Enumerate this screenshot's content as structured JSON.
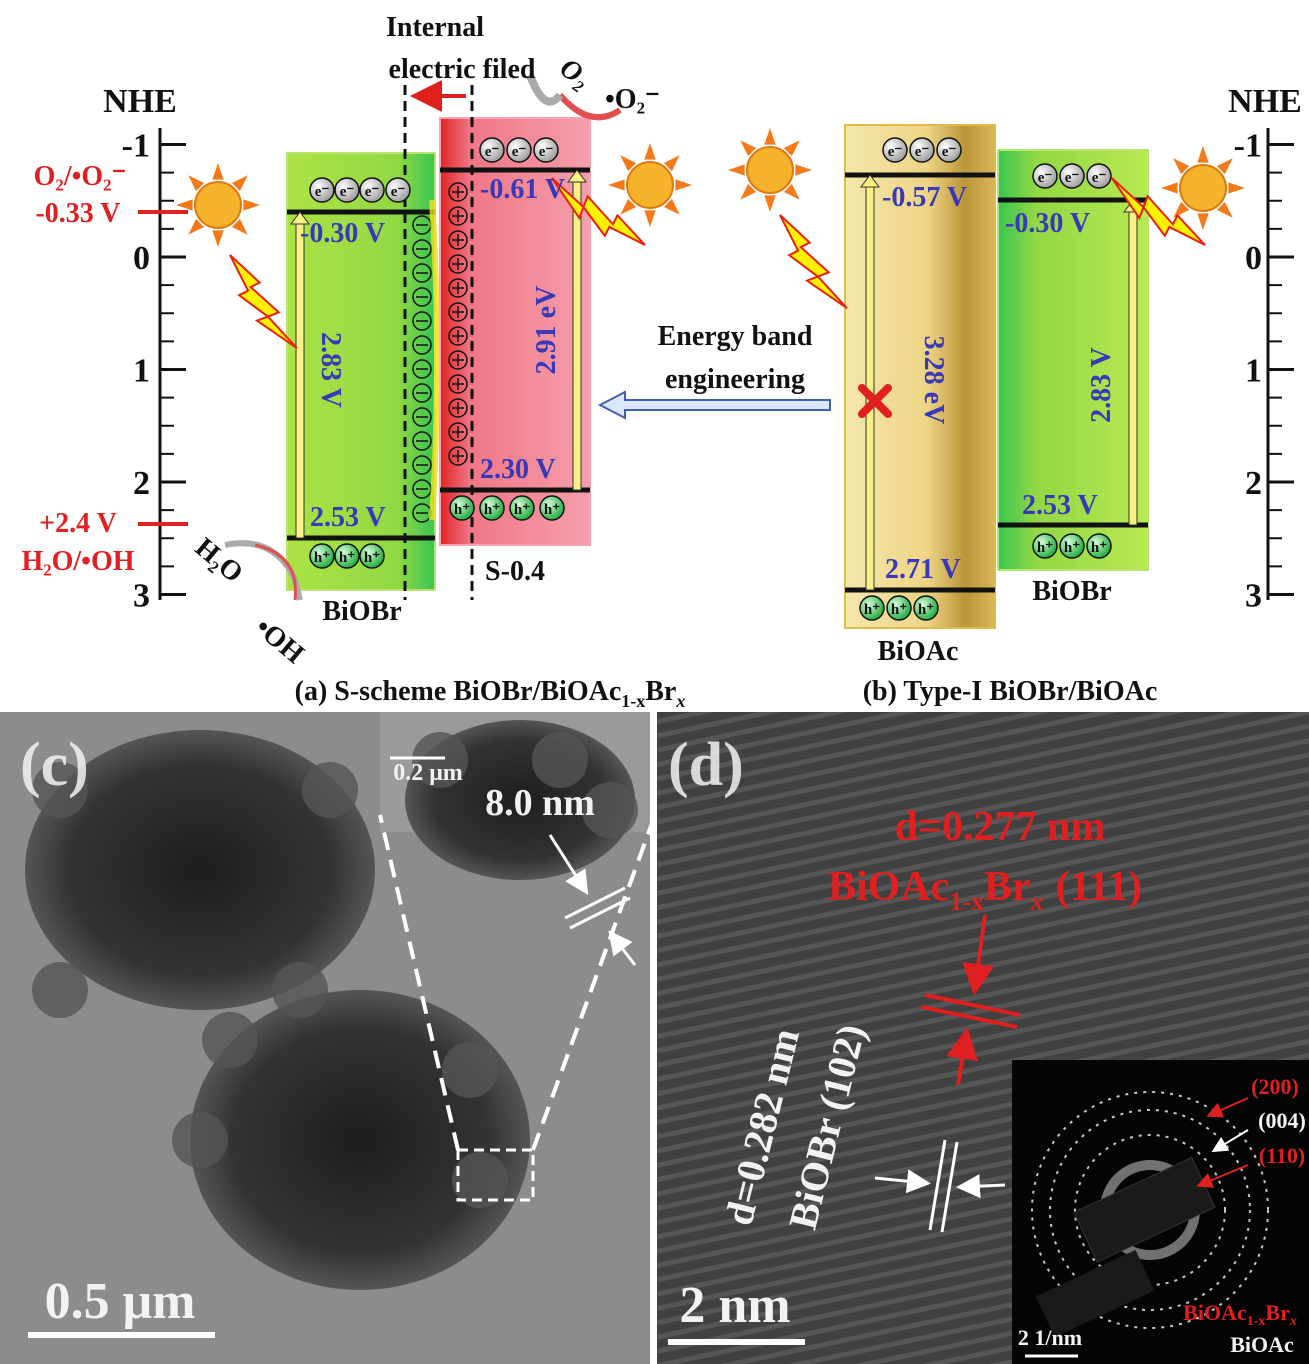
{
  "panel_a": {
    "nhe": "NHE",
    "ticks": [
      "-1",
      "0",
      "1",
      "2",
      "3"
    ],
    "o2_couple": "O₂/•O₂⁻",
    "o2_potential": "-0.33 V",
    "oh_potential": "+2.4 V",
    "oh_couple": "H₂O/•OH",
    "field": [
      "Internal",
      "electric filed"
    ],
    "o2": "O₂",
    "superoxide": "•O₂⁻",
    "h2o": "H₂O",
    "hydroxyl": "•OH",
    "electron": "e⁻",
    "hole": "h⁺",
    "biobr": {
      "name": "BiOBr",
      "cb": "-0.30 V",
      "vb": "2.53 V",
      "gap": "2.83 V"
    },
    "s04": {
      "name": "S-0.4",
      "cb": "-0.61 V",
      "vb": "2.30 V",
      "gap": "2.91 eV"
    },
    "caption": {
      "main": "(a) S-scheme BiOBr/BiOAc",
      "sub1": "1-x",
      "br": "Br",
      "sub2": "x"
    }
  },
  "panel_b": {
    "nhe": "NHE",
    "ticks": [
      "-1",
      "0",
      "1",
      "2",
      "3"
    ],
    "engineering": [
      "Energy band",
      "engineering"
    ],
    "electron": "e⁻",
    "hole": "h⁺",
    "bioac": {
      "name": "BiOAc",
      "cb": "-0.57 V",
      "vb": "2.71 V",
      "gap": "3.28 eV"
    },
    "biobr": {
      "name": "BiOBr",
      "cb": "-0.30 V",
      "vb": "2.53 V",
      "gap": "2.83 V"
    },
    "caption": "(b) Type-I BiOBr/BiOAc"
  },
  "panel_c": {
    "label": "(c)",
    "fringe": "8.0 nm",
    "inset_scale": "0.2 μm",
    "scale": "0.5 μm"
  },
  "panel_d": {
    "label": "(d)",
    "d111": "d=0.277 nm",
    "phase111": {
      "main": "BiOAc",
      "sub1": "1-x",
      "br": "Br",
      "sub2": "x",
      "plane": "(111)"
    },
    "d102": "d=0.282 nm",
    "phase102": "BiOBr (102)",
    "scale": "2 nm",
    "saed": {
      "r200": "(200)",
      "r004": "(004)",
      "r110": "(110)",
      "phase": {
        "main": "BiOAc",
        "sub1": "1-x",
        "br": "Br",
        "sub2": "x"
      },
      "phase2": "BiOAc",
      "scale": "2 1/nm"
    }
  }
}
